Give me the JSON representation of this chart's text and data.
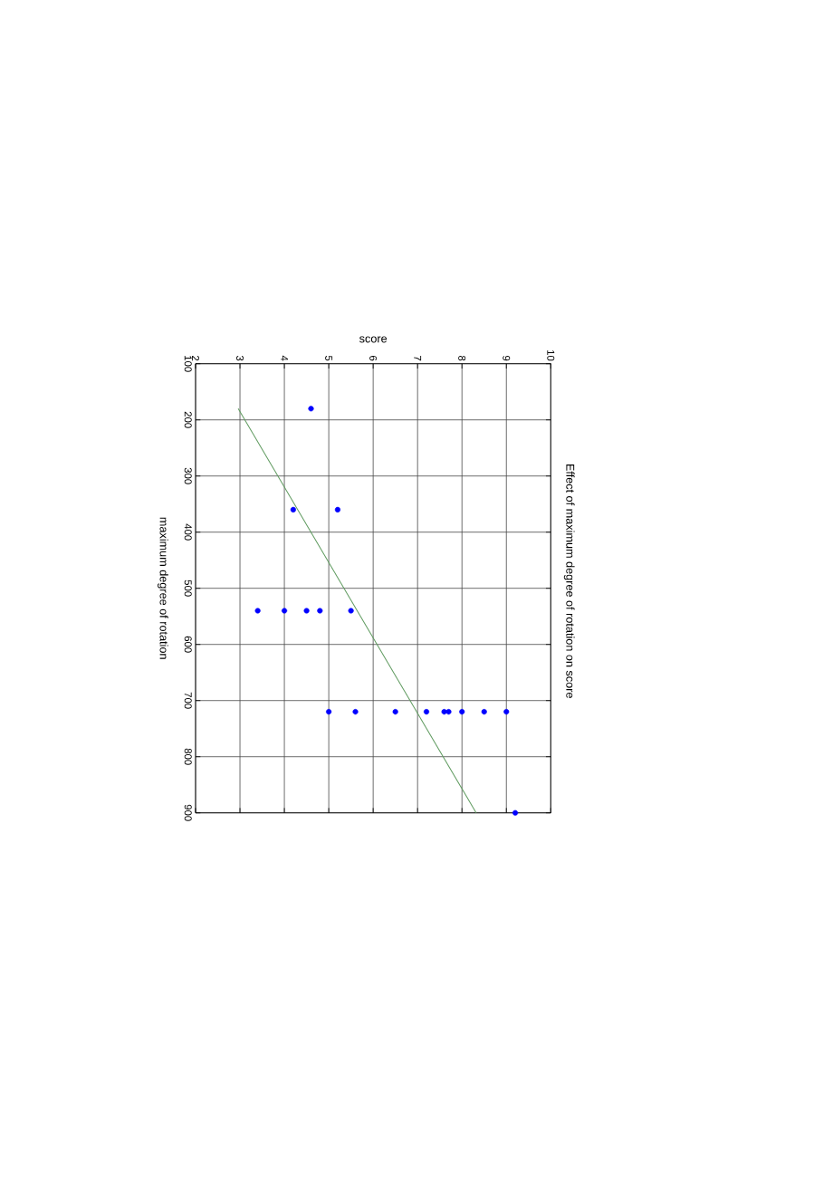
{
  "chart_data": {
    "type": "scatter",
    "title": "Effect of maximum degree of rotation on score",
    "xlabel": "score",
    "ylabel": "maximum degree of rotation",
    "xlim": [
      2,
      10
    ],
    "ylim": [
      900,
      100
    ],
    "xticks": [
      2,
      3,
      4,
      5,
      6,
      7,
      8,
      9,
      10
    ],
    "yticks": [
      100,
      200,
      300,
      400,
      500,
      600,
      700,
      800,
      900
    ],
    "grid": true,
    "marker": "circle",
    "series": [
      {
        "type": "scatter",
        "color": "#0000ff",
        "x": [
          4.6,
          4.2,
          5.2,
          3.4,
          4.0,
          4.5,
          4.8,
          5.5,
          5.0,
          5.6,
          6.5,
          7.2,
          7.6,
          7.7,
          8.0,
          8.5,
          9.0,
          9.2
        ],
        "values": [
          180,
          360,
          360,
          540,
          540,
          540,
          540,
          540,
          720,
          720,
          720,
          720,
          720,
          720,
          720,
          720,
          720,
          900
        ]
      },
      {
        "type": "line",
        "color": "#5f9a5f",
        "x": [
          2.96,
          8.32
        ],
        "values": [
          180,
          900
        ],
        "marker": "none",
        "line_style": "solid"
      }
    ]
  }
}
